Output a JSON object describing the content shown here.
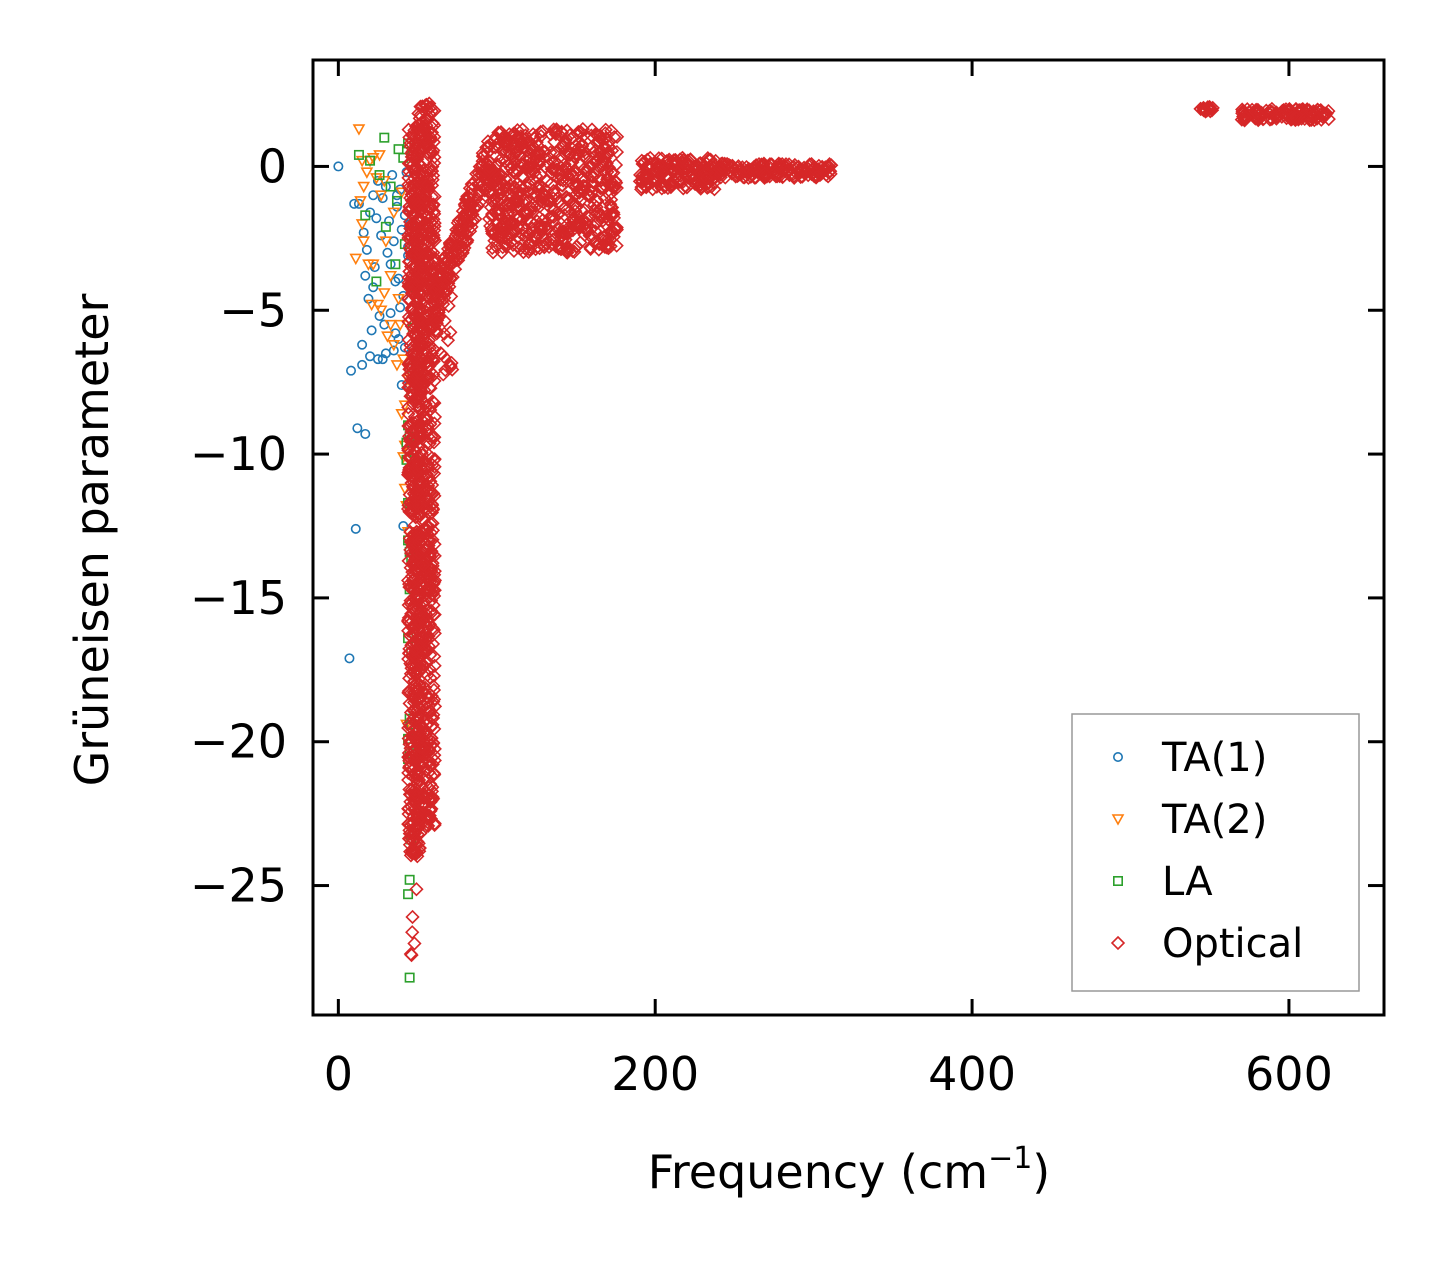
{
  "chart_data": {
    "type": "scatter",
    "xlabel": "Frequency (cm",
    "xlabel_sup": "−1",
    "xlabel_close": ")",
    "ylabel": "Grüneisen parameter",
    "xlim": [
      -16,
      660
    ],
    "ylim": [
      -29.5,
      3.7
    ],
    "xticks": [
      0,
      200,
      400,
      600
    ],
    "xtick_labels": [
      "0",
      "200",
      "400",
      "600"
    ],
    "yticks": [
      0,
      -5,
      -10,
      -15,
      -20,
      -25
    ],
    "ytick_labels": [
      "0",
      "−5",
      "−10",
      "−15",
      "−20",
      "−25"
    ],
    "legend_position": "lower-right",
    "series": [
      {
        "name": "TA(1)",
        "marker": "circle",
        "color": "#1f77b4",
        "points": [
          [
            0,
            0
          ],
          [
            10,
            -1.3
          ],
          [
            13,
            -1.3
          ],
          [
            16,
            -2.3
          ],
          [
            17,
            -3.8
          ],
          [
            18,
            -2.9
          ],
          [
            20,
            -1.6
          ],
          [
            21,
            -5.7
          ],
          [
            22,
            -1.0
          ],
          [
            23,
            -3.5
          ],
          [
            24,
            -1.8
          ],
          [
            25,
            -0.5
          ],
          [
            26,
            -5.2
          ],
          [
            27,
            -2.4
          ],
          [
            28,
            -1.1
          ],
          [
            29,
            -5.5
          ],
          [
            30,
            -0.7
          ],
          [
            31,
            -3.0
          ],
          [
            32,
            -1.9
          ],
          [
            33,
            -5.1
          ],
          [
            34,
            -0.3
          ],
          [
            35,
            -2.6
          ],
          [
            36,
            -5.8
          ],
          [
            37,
            -1.4
          ],
          [
            38,
            -3.9
          ],
          [
            39,
            -0.8
          ],
          [
            40,
            -2.2
          ],
          [
            41,
            -4.5
          ],
          [
            42,
            -1.7
          ],
          [
            43,
            -0.2
          ],
          [
            44,
            -3.1
          ],
          [
            45,
            -2.0
          ],
          [
            46,
            -1.2
          ],
          [
            40,
            -7.6
          ],
          [
            42,
            -6.3
          ],
          [
            38,
            -6.0
          ],
          [
            35,
            -6.4
          ],
          [
            30,
            -6.5
          ],
          [
            28,
            -6.7
          ],
          [
            25,
            -6.7
          ],
          [
            20,
            -6.6
          ],
          [
            15,
            -6.2
          ],
          [
            15,
            -6.9
          ],
          [
            8,
            -7.1
          ],
          [
            12,
            -9.1
          ],
          [
            17,
            -9.3
          ],
          [
            11,
            -12.6
          ],
          [
            7,
            -17.1
          ],
          [
            41,
            -12.5
          ],
          [
            22,
            -4.2
          ],
          [
            19,
            -4.6
          ],
          [
            36,
            -4.0
          ],
          [
            44,
            -2.8
          ],
          [
            37,
            -1.0
          ],
          [
            33,
            -3.4
          ],
          [
            39,
            -4.9
          ]
        ]
      },
      {
        "name": "TA(2)",
        "marker": "triangle",
        "color": "#ff7f0e",
        "points": [
          [
            13,
            1.3
          ],
          [
            15,
            0.2
          ],
          [
            16,
            -0.7
          ],
          [
            18,
            -0.2
          ],
          [
            20,
            0.2
          ],
          [
            22,
            0.3
          ],
          [
            24,
            -0.4
          ],
          [
            26,
            0.4
          ],
          [
            27,
            -1.0
          ],
          [
            29,
            -0.5
          ],
          [
            14,
            -1.2
          ],
          [
            16,
            -2.6
          ],
          [
            11,
            -3.2
          ],
          [
            15,
            -2.0
          ],
          [
            19,
            -3.4
          ],
          [
            22,
            -3.4
          ],
          [
            25,
            -4.8
          ],
          [
            21,
            -4.8
          ],
          [
            27,
            -5.0
          ],
          [
            29,
            -4.4
          ],
          [
            31,
            -5.9
          ],
          [
            33,
            -5.5
          ],
          [
            35,
            -6.2
          ],
          [
            37,
            -6.9
          ],
          [
            39,
            -5.5
          ],
          [
            41,
            -6.7
          ],
          [
            40,
            -8.6
          ],
          [
            42,
            -8.3
          ],
          [
            41,
            -10.1
          ],
          [
            42,
            -11.2
          ],
          [
            43,
            -11.8
          ],
          [
            44,
            -12.7
          ],
          [
            43,
            -19.4
          ],
          [
            42,
            -9.7
          ],
          [
            44,
            -7.4
          ],
          [
            38,
            -4.6
          ],
          [
            33,
            -3.8
          ],
          [
            30,
            -2.6
          ],
          [
            35,
            -1.6
          ],
          [
            40,
            -0.9
          ]
        ]
      },
      {
        "name": "LA",
        "marker": "square",
        "color": "#2ca02c",
        "points": [
          [
            13,
            0.4
          ],
          [
            20,
            0.2
          ],
          [
            26,
            -0.3
          ],
          [
            29,
            1.0
          ],
          [
            33,
            -0.7
          ],
          [
            37,
            -1.2
          ],
          [
            38,
            0.6
          ],
          [
            41,
            0.3
          ],
          [
            44,
            0.8
          ],
          [
            47,
            0.4
          ],
          [
            17,
            -1.7
          ],
          [
            24,
            -4.0
          ],
          [
            30,
            -2.1
          ],
          [
            36,
            -3.4
          ],
          [
            46,
            -4.2
          ],
          [
            47,
            -5.6
          ],
          [
            45,
            -7.0
          ],
          [
            46,
            -7.9
          ],
          [
            44,
            -9.0
          ],
          [
            45,
            -9.4
          ],
          [
            43,
            -10.2
          ],
          [
            45,
            -13.4
          ],
          [
            44,
            -13.0
          ],
          [
            46,
            -13.6
          ],
          [
            45,
            -14.7
          ],
          [
            44,
            -16.4
          ],
          [
            46,
            -16.9
          ],
          [
            44,
            -19.9
          ],
          [
            45,
            -19.2
          ],
          [
            46,
            -19.4
          ],
          [
            44,
            -20.6
          ],
          [
            45,
            -20.4
          ],
          [
            46,
            -23.4
          ],
          [
            45,
            -24.8
          ],
          [
            44,
            -25.3
          ],
          [
            45,
            -28.2
          ],
          [
            44,
            -11.7
          ],
          [
            43,
            -9.6
          ],
          [
            42,
            -2.7
          ]
        ]
      },
      {
        "name": "Optical",
        "marker": "diamond",
        "color": "#d62728",
        "points": "generated",
        "clusters": [
          {
            "x": [
              44,
              52
            ],
            "y": [
              -24.0,
              1.5
            ],
            "n": 650
          },
          {
            "x": [
              50,
              61
            ],
            "y": [
              -23.0,
              2.2
            ],
            "n": 650
          },
          {
            "x": [
              44,
              50
            ],
            "y": [
              -28.3,
              -25.0
            ],
            "n": 6
          },
          {
            "x": [
              56,
              72
            ],
            "y": [
              -7.3,
              -3.0
            ],
            "n": 40
          },
          {
            "x": [
              60,
              96
            ],
            "y": [
              -5.0,
              0.4
            ],
            "n": 200,
            "trend": true
          },
          {
            "x": [
              95,
              176
            ],
            "y": [
              -3.0,
              1.3
            ],
            "n": 650
          },
          {
            "x": [
              190,
              240
            ],
            "y": [
              -0.8,
              0.3
            ],
            "n": 180
          },
          {
            "x": [
              240,
              312
            ],
            "y": [
              -0.4,
              0.1
            ],
            "n": 160
          },
          {
            "x": [
              544,
              552
            ],
            "y": [
              1.9,
              2.1
            ],
            "n": 20
          },
          {
            "x": [
              570,
              626
            ],
            "y": [
              1.6,
              2.0
            ],
            "n": 120
          }
        ]
      }
    ]
  }
}
